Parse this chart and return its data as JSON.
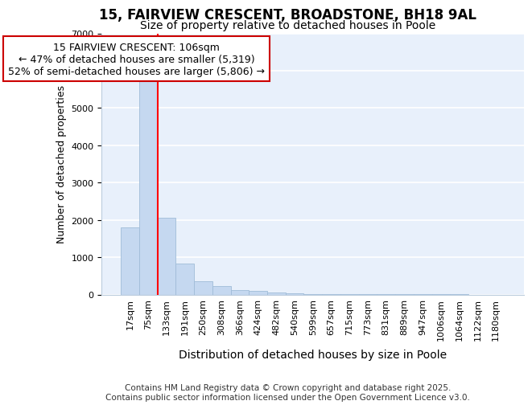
{
  "title_line1": "15, FAIRVIEW CRESCENT, BROADSTONE, BH18 9AL",
  "title_line2": "Size of property relative to detached houses in Poole",
  "xlabel": "Distribution of detached houses by size in Poole",
  "ylabel": "Number of detached properties",
  "categories": [
    "17sqm",
    "75sqm",
    "133sqm",
    "191sqm",
    "250sqm",
    "308sqm",
    "366sqm",
    "424sqm",
    "482sqm",
    "540sqm",
    "599sqm",
    "657sqm",
    "715sqm",
    "773sqm",
    "831sqm",
    "889sqm",
    "947sqm",
    "1006sqm",
    "1064sqm",
    "1122sqm",
    "1180sqm"
  ],
  "values": [
    1800,
    5800,
    2050,
    820,
    350,
    220,
    120,
    100,
    60,
    30,
    15,
    8,
    5,
    3,
    2,
    1,
    1,
    1,
    1,
    0,
    0
  ],
  "bar_color": "#c5d8f0",
  "bar_edge_color": "#a0bcd8",
  "red_line_x": 1.5,
  "annotation_title": "15 FAIRVIEW CRESCENT: 106sqm",
  "annotation_line2": "← 47% of detached houses are smaller (5,319)",
  "annotation_line3": "52% of semi-detached houses are larger (5,806) →",
  "annotation_box_facecolor": "#ffffff",
  "annotation_box_edgecolor": "#cc0000",
  "footer_line1": "Contains HM Land Registry data © Crown copyright and database right 2025.",
  "footer_line2": "Contains public sector information licensed under the Open Government Licence v3.0.",
  "ylim": [
    0,
    7000
  ],
  "background_color": "#e8f0fb",
  "grid_color": "#ffffff",
  "title_fontsize": 12,
  "subtitle_fontsize": 10,
  "ylabel_fontsize": 9,
  "xlabel_fontsize": 10,
  "tick_fontsize": 8,
  "footer_fontsize": 7.5,
  "annotation_fontsize": 9
}
